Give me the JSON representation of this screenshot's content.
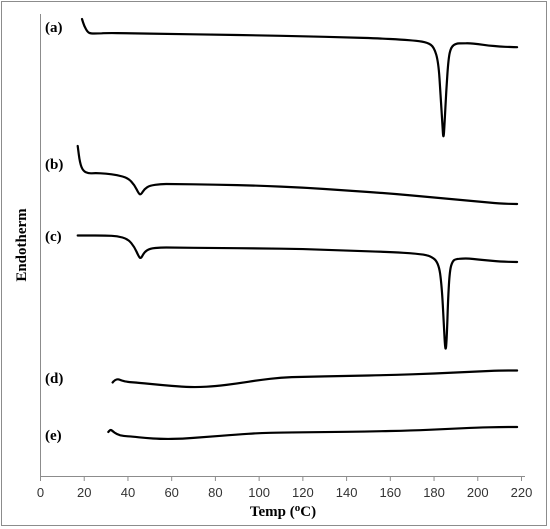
{
  "chart_data": {
    "type": "line",
    "xlabel": "Temp (",
    "xlabel_sup": "o",
    "xlabel_tail": "C)",
    "ylabel": "Endotherm",
    "xlim": [
      0,
      220
    ],
    "x_ticks": [
      "0",
      "20",
      "40",
      "60",
      "80",
      "100",
      "120",
      "140",
      "160",
      "180",
      "200",
      "220"
    ],
    "y_ticks": "none",
    "grid": false,
    "legend": "none",
    "line_color": "#000000",
    "series": [
      {
        "name": "(a)",
        "points": [
          [
            19,
            19
          ],
          [
            20,
            26
          ],
          [
            21.5,
            32
          ],
          [
            23,
            33.5
          ],
          [
            26,
            33.5
          ],
          [
            30,
            33
          ],
          [
            40,
            33.2
          ],
          [
            60,
            34
          ],
          [
            80,
            34.6
          ],
          [
            100,
            35.4
          ],
          [
            120,
            36.2
          ],
          [
            140,
            37.4
          ],
          [
            155,
            38.4
          ],
          [
            165,
            39.6
          ],
          [
            172,
            40.8
          ],
          [
            177,
            42.5
          ],
          [
            180,
            47
          ],
          [
            182,
            62
          ],
          [
            183,
            95
          ],
          [
            183.8,
            125
          ],
          [
            184.3,
            140
          ],
          [
            184.8,
            125
          ],
          [
            185.6,
            90
          ],
          [
            186.6,
            58
          ],
          [
            187.8,
            47
          ],
          [
            190,
            43.5
          ],
          [
            193,
            43.3
          ],
          [
            196,
            43.2
          ],
          [
            200,
            44
          ],
          [
            205,
            45.6
          ],
          [
            210,
            46.5
          ],
          [
            215,
            47
          ],
          [
            218,
            47.2
          ]
        ]
      },
      {
        "name": "(b)",
        "points": [
          [
            17,
            146
          ],
          [
            18,
            163
          ],
          [
            19.5,
            171
          ],
          [
            22,
            173.5
          ],
          [
            25,
            173
          ],
          [
            30,
            173.5
          ],
          [
            35,
            175
          ],
          [
            40,
            178
          ],
          [
            43,
            185
          ],
          [
            45,
            194
          ],
          [
            46,
            194.5
          ],
          [
            47.5,
            189
          ],
          [
            50,
            185.5
          ],
          [
            55,
            184
          ],
          [
            60,
            184
          ],
          [
            80,
            184.6
          ],
          [
            100,
            185.6
          ],
          [
            120,
            187.5
          ],
          [
            140,
            190.5
          ],
          [
            160,
            193.5
          ],
          [
            180,
            197.5
          ],
          [
            200,
            201.5
          ],
          [
            210,
            203.5
          ],
          [
            218,
            204
          ]
        ]
      },
      {
        "name": "(c)",
        "points": [
          [
            17,
            235.5
          ],
          [
            20,
            235.5
          ],
          [
            30,
            235.5
          ],
          [
            35,
            236
          ],
          [
            40,
            239
          ],
          [
            43,
            247
          ],
          [
            45,
            257
          ],
          [
            46,
            258.5
          ],
          [
            47.5,
            252
          ],
          [
            50,
            248.5
          ],
          [
            55,
            247.5
          ],
          [
            60,
            247.5
          ],
          [
            80,
            248
          ],
          [
            100,
            248.4
          ],
          [
            120,
            249
          ],
          [
            140,
            250.5
          ],
          [
            160,
            252
          ],
          [
            172,
            253.6
          ],
          [
            178,
            255.5
          ],
          [
            182,
            262
          ],
          [
            183.5,
            285
          ],
          [
            184.5,
            325
          ],
          [
            185.2,
            353
          ],
          [
            185.8,
            340
          ],
          [
            186.4,
            300
          ],
          [
            187.2,
            270
          ],
          [
            188.5,
            261
          ],
          [
            190,
            259
          ],
          [
            193,
            258.5
          ],
          [
            196,
            258.5
          ],
          [
            200,
            259.5
          ],
          [
            205,
            260.5
          ],
          [
            210,
            261.5
          ],
          [
            218,
            262
          ]
        ]
      },
      {
        "name": "(d)",
        "points": [
          [
            33,
            382.5
          ],
          [
            34,
            380
          ],
          [
            35.5,
            379
          ],
          [
            37,
            380.5
          ],
          [
            40,
            382
          ],
          [
            45,
            382.8
          ],
          [
            55,
            385
          ],
          [
            65,
            386.8
          ],
          [
            72,
            387.2
          ],
          [
            80,
            386.2
          ],
          [
            90,
            383.5
          ],
          [
            100,
            380
          ],
          [
            110,
            377.5
          ],
          [
            120,
            376.8
          ],
          [
            140,
            376
          ],
          [
            160,
            375
          ],
          [
            180,
            373.5
          ],
          [
            200,
            371.5
          ],
          [
            210,
            370.5
          ],
          [
            218,
            370.5
          ]
        ]
      },
      {
        "name": "(e)",
        "points": [
          [
            31,
            432
          ],
          [
            32,
            429.5
          ],
          [
            33,
            431
          ],
          [
            35,
            434.5
          ],
          [
            38,
            436
          ],
          [
            42,
            436.5
          ],
          [
            48,
            438
          ],
          [
            55,
            439
          ],
          [
            65,
            438.8
          ],
          [
            75,
            437
          ],
          [
            90,
            434.5
          ],
          [
            100,
            433
          ],
          [
            110,
            432.5
          ],
          [
            130,
            432
          ],
          [
            150,
            431.5
          ],
          [
            170,
            430.5
          ],
          [
            185,
            429
          ],
          [
            200,
            427.5
          ],
          [
            210,
            427
          ],
          [
            218,
            427
          ]
        ]
      }
    ]
  },
  "trace_labels": {
    "a": "(a)",
    "b": "(b)",
    "c": "(c)",
    "d": "(d)",
    "e": "(e)"
  }
}
